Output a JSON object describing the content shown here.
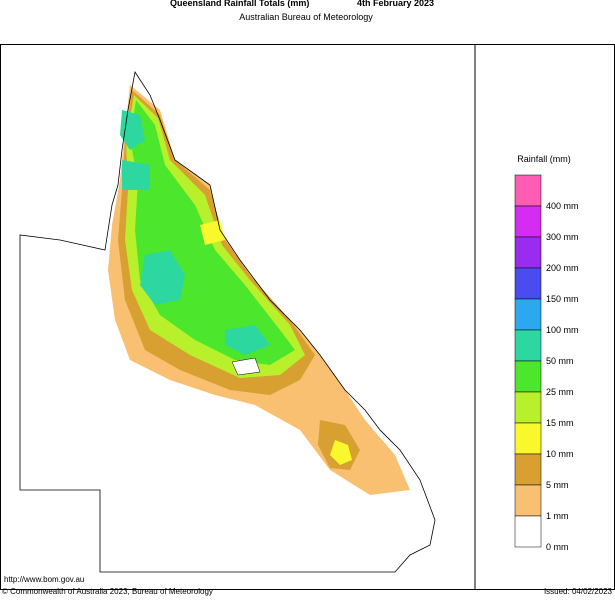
{
  "header": {
    "title": "Queensland Rainfall Totals (mm)",
    "date": "4th February 2023",
    "subtitle": "Australian Bureau of Meteorology"
  },
  "legend": {
    "title": "Rainfall (mm)",
    "levels": [
      {
        "label": "400 mm",
        "color": "#ff5cb4"
      },
      {
        "label": "300 mm",
        "color": "#d42cf0"
      },
      {
        "label": "200 mm",
        "color": "#9a2cf0"
      },
      {
        "label": "150 mm",
        "color": "#4a4cf0"
      },
      {
        "label": "100 mm",
        "color": "#2ca8f0"
      },
      {
        "label": "50 mm",
        "color": "#2cd8a0"
      },
      {
        "label": "25 mm",
        "color": "#4ce62c"
      },
      {
        "label": "15 mm",
        "color": "#b8f02c"
      },
      {
        "label": "10 mm",
        "color": "#f8f82c"
      },
      {
        "label": "5 mm",
        "color": "#d8a030"
      },
      {
        "label": "1 mm",
        "color": "#f8c070"
      },
      {
        "label": "0 mm",
        "color": "#ffffff"
      }
    ]
  },
  "footer": {
    "url": "http://www.bom.gov.au",
    "copyright": "© Commonwealth of Australia 2023, Bureau of Meteorology",
    "issued": "Issued: 04/02/2023"
  }
}
